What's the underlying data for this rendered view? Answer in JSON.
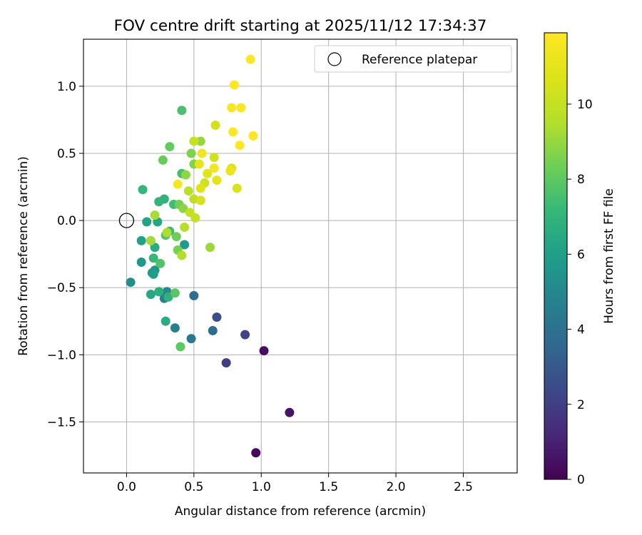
{
  "chart_data": {
    "type": "scatter",
    "title": "FOV centre drift starting at 2025/11/12 17:34:37",
    "xlabel": "Angular distance from reference (arcmin)",
    "ylabel": "Rotation from reference (arcmin)",
    "xlim": [
      -0.32,
      2.9
    ],
    "ylim": [
      -1.88,
      1.35
    ],
    "xticks": [
      0.0,
      0.5,
      1.0,
      1.5,
      2.0,
      2.5
    ],
    "xtick_labels": [
      "0.0",
      "0.5",
      "1.0",
      "1.5",
      "2.0",
      "2.5"
    ],
    "yticks": [
      -1.5,
      -1.0,
      -0.5,
      0.0,
      0.5,
      1.0
    ],
    "ytick_labels": [
      "−1.5",
      "−1.0",
      "−0.5",
      "0.0",
      "0.5",
      "1.0"
    ],
    "grid": true,
    "legend": {
      "placement": "top-right",
      "entries": [
        "Reference platepar"
      ]
    },
    "reference_point": {
      "x": 0.0,
      "y": 0.0,
      "label": "Reference platepar"
    },
    "colorbar": {
      "label": "Hours from first FF file",
      "colormap": "viridis",
      "range": [
        0,
        11.9
      ],
      "ticks": [
        0,
        2,
        4,
        6,
        8,
        10
      ],
      "tick_labels": [
        "0",
        "2",
        "4",
        "6",
        "8",
        "10"
      ]
    },
    "points": [
      {
        "x": 0.96,
        "y": -1.73,
        "h": 0.2
      },
      {
        "x": 1.02,
        "y": -0.97,
        "h": 0.4
      },
      {
        "x": 1.21,
        "y": -1.43,
        "h": 0.6
      },
      {
        "x": 0.74,
        "y": -1.06,
        "h": 1.9
      },
      {
        "x": 0.88,
        "y": -0.85,
        "h": 2.2
      },
      {
        "x": 0.67,
        "y": -0.72,
        "h": 2.5
      },
      {
        "x": 0.64,
        "y": -0.82,
        "h": 3.8
      },
      {
        "x": 0.5,
        "y": -0.56,
        "h": 3.9
      },
      {
        "x": 0.48,
        "y": -0.88,
        "h": 4.3
      },
      {
        "x": 0.36,
        "y": -0.8,
        "h": 4.6
      },
      {
        "x": 0.28,
        "y": -0.58,
        "h": 4.8
      },
      {
        "x": 0.3,
        "y": -0.53,
        "h": 5.0
      },
      {
        "x": 0.03,
        "y": -0.46,
        "h": 5.3
      },
      {
        "x": 0.19,
        "y": -0.39,
        "h": 5.5
      },
      {
        "x": 0.21,
        "y": -0.37,
        "h": 5.6
      },
      {
        "x": 0.11,
        "y": -0.31,
        "h": 5.7
      },
      {
        "x": 0.43,
        "y": -0.18,
        "h": 5.8
      },
      {
        "x": 0.2,
        "y": -0.4,
        "h": 6.0
      },
      {
        "x": 0.11,
        "y": -0.15,
        "h": 6.1
      },
      {
        "x": 0.15,
        "y": -0.01,
        "h": 6.2
      },
      {
        "x": 0.23,
        "y": -0.01,
        "h": 6.3
      },
      {
        "x": 0.18,
        "y": -0.55,
        "h": 6.4
      },
      {
        "x": 0.29,
        "y": -0.75,
        "h": 6.5
      },
      {
        "x": 0.21,
        "y": -0.2,
        "h": 6.6
      },
      {
        "x": 0.24,
        "y": -0.53,
        "h": 6.7
      },
      {
        "x": 0.31,
        "y": -0.57,
        "h": 6.8
      },
      {
        "x": 0.28,
        "y": 0.16,
        "h": 6.9
      },
      {
        "x": 0.24,
        "y": 0.14,
        "h": 7.0
      },
      {
        "x": 0.12,
        "y": 0.23,
        "h": 7.1
      },
      {
        "x": 0.2,
        "y": -0.28,
        "h": 7.2
      },
      {
        "x": 0.32,
        "y": -0.08,
        "h": 7.3
      },
      {
        "x": 0.35,
        "y": 0.12,
        "h": 7.4
      },
      {
        "x": 0.41,
        "y": 0.35,
        "h": 7.5
      },
      {
        "x": 0.41,
        "y": 0.82,
        "h": 7.6
      },
      {
        "x": 0.25,
        "y": -0.32,
        "h": 7.7
      },
      {
        "x": 0.29,
        "y": -0.11,
        "h": 7.8
      },
      {
        "x": 0.36,
        "y": -0.54,
        "h": 7.9
      },
      {
        "x": 0.4,
        "y": -0.94,
        "h": 8.0
      },
      {
        "x": 0.32,
        "y": 0.55,
        "h": 8.1
      },
      {
        "x": 0.27,
        "y": 0.45,
        "h": 8.2
      },
      {
        "x": 0.37,
        "y": -0.12,
        "h": 8.3
      },
      {
        "x": 0.39,
        "y": 0.12,
        "h": 8.4
      },
      {
        "x": 0.38,
        "y": -0.22,
        "h": 8.5
      },
      {
        "x": 0.48,
        "y": 0.5,
        "h": 8.6
      },
      {
        "x": 0.5,
        "y": 0.42,
        "h": 8.7
      },
      {
        "x": 0.42,
        "y": 0.09,
        "h": 8.8
      },
      {
        "x": 0.44,
        "y": 0.34,
        "h": 8.9
      },
      {
        "x": 0.55,
        "y": 0.59,
        "h": 9.0
      },
      {
        "x": 0.62,
        "y": -0.2,
        "h": 9.1
      },
      {
        "x": 0.18,
        "y": -0.15,
        "h": 9.2
      },
      {
        "x": 0.21,
        "y": 0.04,
        "h": 9.3
      },
      {
        "x": 0.3,
        "y": -0.09,
        "h": 9.4
      },
      {
        "x": 0.41,
        "y": -0.26,
        "h": 9.5
      },
      {
        "x": 0.43,
        "y": -0.05,
        "h": 9.6
      },
      {
        "x": 0.46,
        "y": 0.22,
        "h": 9.7
      },
      {
        "x": 0.5,
        "y": 0.16,
        "h": 9.8
      },
      {
        "x": 0.47,
        "y": 0.06,
        "h": 9.9
      },
      {
        "x": 0.51,
        "y": 0.02,
        "h": 10.0
      },
      {
        "x": 0.5,
        "y": 0.59,
        "h": 10.1
      },
      {
        "x": 0.58,
        "y": 0.28,
        "h": 10.2
      },
      {
        "x": 0.65,
        "y": 0.47,
        "h": 10.3
      },
      {
        "x": 0.66,
        "y": 0.71,
        "h": 10.4
      },
      {
        "x": 0.55,
        "y": 0.15,
        "h": 10.5
      },
      {
        "x": 0.82,
        "y": 0.24,
        "h": 10.6
      },
      {
        "x": 0.78,
        "y": 0.39,
        "h": 10.7
      },
      {
        "x": 0.55,
        "y": 0.24,
        "h": 10.8
      },
      {
        "x": 0.6,
        "y": 0.35,
        "h": 10.9
      },
      {
        "x": 0.67,
        "y": 0.3,
        "h": 11.0
      },
      {
        "x": 0.54,
        "y": 0.42,
        "h": 11.1
      },
      {
        "x": 0.77,
        "y": 0.37,
        "h": 11.2
      },
      {
        "x": 0.56,
        "y": 0.5,
        "h": 11.4
      },
      {
        "x": 0.65,
        "y": 0.39,
        "h": 11.5
      },
      {
        "x": 0.38,
        "y": 0.27,
        "h": 11.6
      },
      {
        "x": 0.78,
        "y": 0.84,
        "h": 11.7
      },
      {
        "x": 0.85,
        "y": 0.84,
        "h": 11.8
      },
      {
        "x": 0.8,
        "y": 1.01,
        "h": 11.85
      },
      {
        "x": 0.79,
        "y": 0.66,
        "h": 11.9
      },
      {
        "x": 0.84,
        "y": 0.56,
        "h": 11.9
      },
      {
        "x": 0.94,
        "y": 0.63,
        "h": 11.9
      },
      {
        "x": 0.92,
        "y": 1.2,
        "h": 11.9
      }
    ]
  }
}
